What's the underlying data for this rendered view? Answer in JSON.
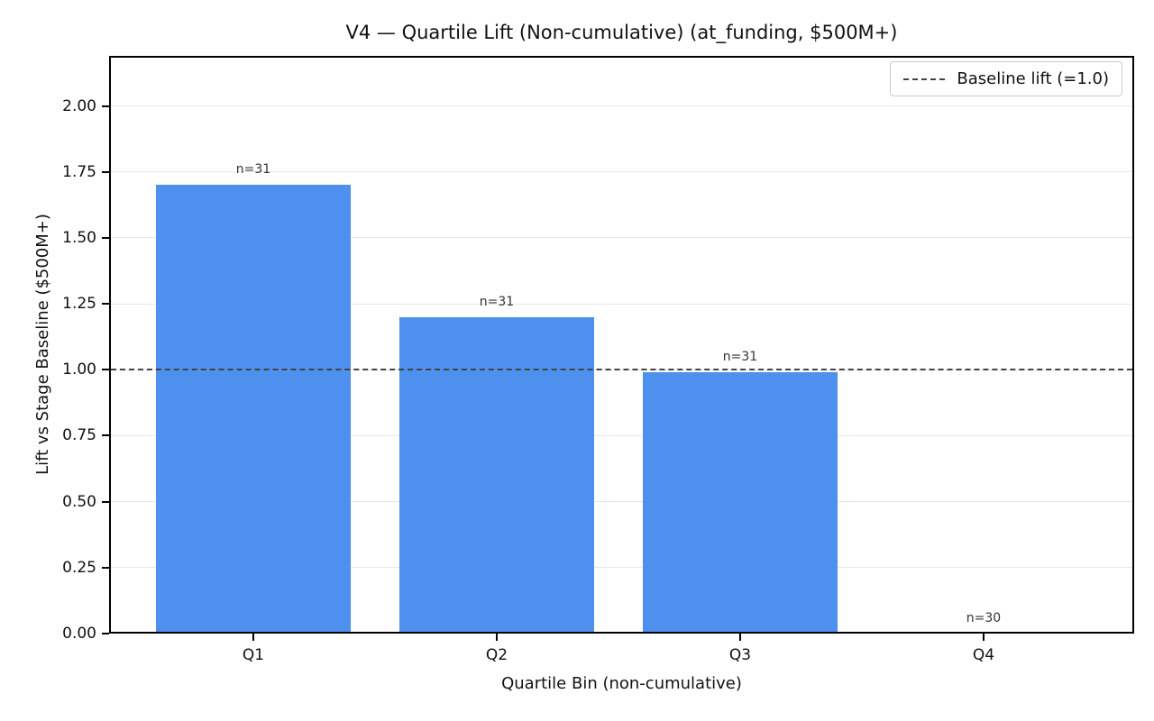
{
  "chart_data": {
    "type": "bar",
    "title": "V4 — Quartile Lift (Non-cumulative) (at_funding, $500M+)",
    "xlabel": "Quartile Bin (non-cumulative)",
    "ylabel": "Lift vs Stage Baseline ($500M+)",
    "categories": [
      "Q1",
      "Q2",
      "Q3",
      "Q4"
    ],
    "values": [
      1.7,
      1.2,
      0.99,
      0.0
    ],
    "bar_labels": [
      "n=31",
      "n=31",
      "n=31",
      "n=30"
    ],
    "counts": [
      31,
      31,
      31,
      30
    ],
    "yticks": [
      0.0,
      0.25,
      0.5,
      0.75,
      1.0,
      1.25,
      1.5,
      1.75,
      2.0
    ],
    "ytick_labels": [
      "0.00",
      "0.25",
      "0.50",
      "0.75",
      "1.00",
      "1.25",
      "1.50",
      "1.75",
      "2.00"
    ],
    "ylim": [
      0,
      2.19
    ],
    "grid": true,
    "baseline": {
      "value": 1.0,
      "label": "Baseline lift (=1.0)"
    },
    "legend_position": "upper right",
    "colors": {
      "bar": "#4d90ee",
      "baseline": "#444444",
      "grid": "#e7e7e7",
      "annotation": "#333333",
      "spine": "#000000"
    }
  }
}
